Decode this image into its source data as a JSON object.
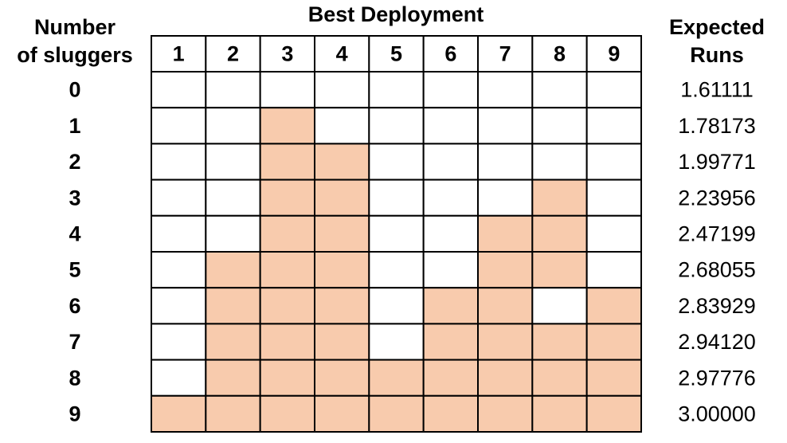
{
  "table": {
    "row_header": [
      "Number",
      "of sluggers"
    ],
    "title": "Best Deployment",
    "value_header": [
      "Expected",
      "Runs"
    ],
    "columns": [
      "1",
      "2",
      "3",
      "4",
      "5",
      "6",
      "7",
      "8",
      "9"
    ],
    "shade_color": "#f8cbad",
    "rows": [
      {
        "label": "0",
        "expected_runs": "1.61111",
        "cells": [
          false,
          false,
          false,
          false,
          false,
          false,
          false,
          false,
          false
        ]
      },
      {
        "label": "1",
        "expected_runs": "1.78173",
        "cells": [
          false,
          false,
          true,
          false,
          false,
          false,
          false,
          false,
          false
        ]
      },
      {
        "label": "2",
        "expected_runs": "1.99771",
        "cells": [
          false,
          false,
          true,
          true,
          false,
          false,
          false,
          false,
          false
        ]
      },
      {
        "label": "3",
        "expected_runs": "2.23956",
        "cells": [
          false,
          false,
          true,
          true,
          false,
          false,
          false,
          true,
          false
        ]
      },
      {
        "label": "4",
        "expected_runs": "2.47199",
        "cells": [
          false,
          false,
          true,
          true,
          false,
          false,
          true,
          true,
          false
        ]
      },
      {
        "label": "5",
        "expected_runs": "2.68055",
        "cells": [
          false,
          true,
          true,
          true,
          false,
          false,
          true,
          true,
          false
        ]
      },
      {
        "label": "6",
        "expected_runs": "2.83929",
        "cells": [
          false,
          true,
          true,
          true,
          false,
          true,
          true,
          false,
          true
        ]
      },
      {
        "label": "7",
        "expected_runs": "2.94120",
        "cells": [
          false,
          true,
          true,
          true,
          false,
          true,
          true,
          true,
          true
        ]
      },
      {
        "label": "8",
        "expected_runs": "2.97776",
        "cells": [
          false,
          true,
          true,
          true,
          true,
          true,
          true,
          true,
          true
        ]
      },
      {
        "label": "9",
        "expected_runs": "3.00000",
        "cells": [
          true,
          true,
          true,
          true,
          true,
          true,
          true,
          true,
          true
        ]
      }
    ]
  }
}
